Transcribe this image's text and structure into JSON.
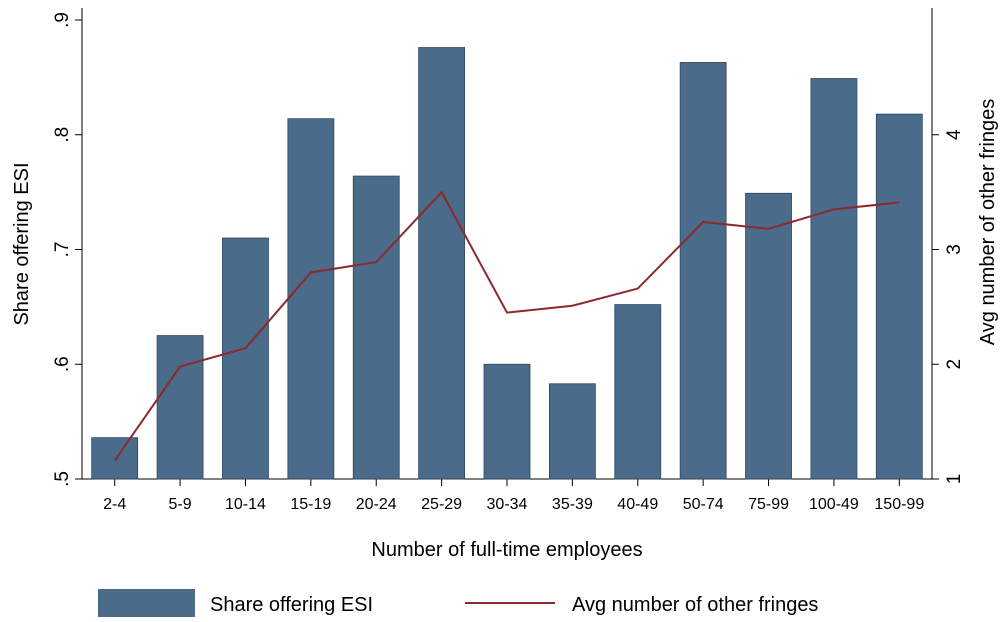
{
  "chart_data": {
    "type": "bar_line",
    "x_label": "Number of full-time employees",
    "y_label": "Share offering ESI",
    "y2_label": "Avg number of other fringes",
    "categories": [
      "2-4",
      "5-9",
      "10-14",
      "15-19",
      "20-24",
      "25-29",
      "30-34",
      "35-39",
      "40-49",
      "50-74",
      "75-99",
      "100-49",
      "150-99"
    ],
    "series": [
      {
        "name": "Share offering ESI",
        "type": "bar",
        "color": "#4a6b8a",
        "values": [
          0.536,
          0.625,
          0.71,
          0.814,
          0.764,
          0.876,
          0.6,
          0.583,
          0.652,
          0.863,
          0.749,
          0.849,
          0.818
        ]
      },
      {
        "name": "Avg number of other fringes",
        "type": "line",
        "axis": "y2",
        "color": "#8b2a2e",
        "values": [
          1.16,
          1.98,
          2.14,
          2.8,
          2.89,
          3.5,
          2.45,
          2.51,
          2.66,
          3.24,
          3.18,
          3.35,
          3.41
        ]
      }
    ],
    "ylim": [
      0.5,
      0.9
    ],
    "yticks": [
      {
        "value": 0.5,
        "label": ".5"
      },
      {
        "value": 0.6,
        "label": ".6"
      },
      {
        "value": 0.7,
        "label": ".7"
      },
      {
        "value": 0.8,
        "label": ".8"
      },
      {
        "value": 0.9,
        "label": ".9"
      }
    ],
    "y2lim": [
      1,
      5
    ],
    "y2ticks": [
      1,
      2,
      3,
      4
    ],
    "legend": "bottom"
  }
}
